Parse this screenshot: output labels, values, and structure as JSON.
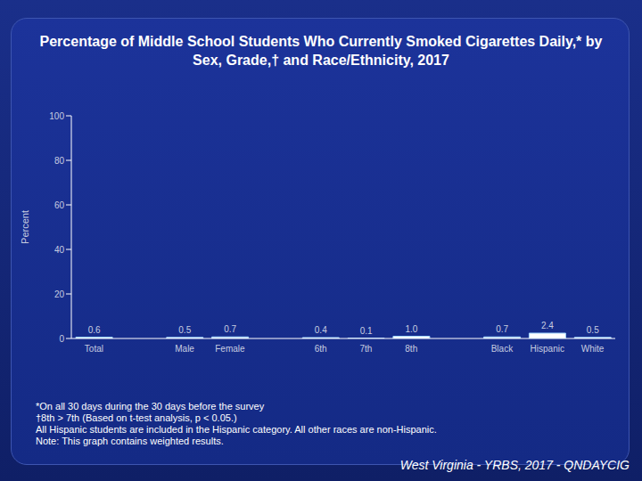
{
  "chart_data": {
    "type": "bar",
    "title": "Percentage of Middle School Students Who Currently Smoked Cigarettes Daily,* by Sex, Grade,† and Race/Ethnicity, 2017",
    "y_label": "Percent",
    "categories": [
      "Total",
      null,
      "Male",
      "Female",
      null,
      "6th",
      "7th",
      "8th",
      null,
      "Black",
      "Hispanic",
      "White"
    ],
    "values": [
      0.6,
      null,
      0.5,
      0.7,
      null,
      0.4,
      0.1,
      1.0,
      null,
      0.7,
      2.4,
      0.5
    ],
    "value_labels": [
      "0.6",
      null,
      "0.5",
      "0.7",
      null,
      "0.4",
      "0.1",
      "1.0",
      null,
      "0.7",
      "2.4",
      "0.5"
    ],
    "color": "#ffffff",
    "ylim": [
      0,
      100
    ],
    "yticks": [
      0,
      20,
      40,
      60,
      80,
      100
    ],
    "grid": false,
    "data_labels": true,
    "footnotes": [
      "*On all 30 days during the 30 days before the survey",
      "†8th > 7th (Based on t-test analysis, p < 0.05.)",
      "All Hispanic students are included in the Hispanic category.  All other races are non-Hispanic.",
      "Note: This graph contains weighted results."
    ],
    "source": "West Virginia - YRBS, 2017 - QNDAYCIG"
  }
}
